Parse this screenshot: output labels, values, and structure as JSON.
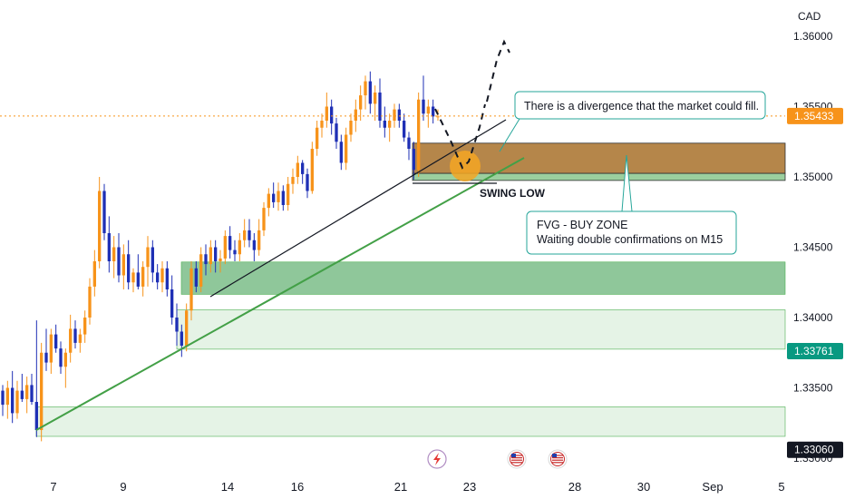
{
  "chart_data": {
    "type": "candlestick",
    "symbol_quote_currency": "CAD",
    "y_ticks": [
      "1.36000",
      "1.35500",
      "1.35000",
      "1.34500",
      "1.34000",
      "1.33500",
      "1.33000"
    ],
    "ylim": [
      1.32985,
      1.3615
    ],
    "x_ticks": [
      "7",
      "9",
      "14",
      "16",
      "21",
      "23",
      "28",
      "30",
      "Sep",
      "5"
    ],
    "price_tags": [
      {
        "label": "1.35433",
        "price": 1.35433,
        "bg": "#f7931a"
      },
      {
        "label": "1.33761",
        "price": 1.33761,
        "bg": "#089981"
      },
      {
        "label": "1.33060",
        "price": 1.3306,
        "bg": "#131722"
      }
    ],
    "current_price": 1.35433,
    "zones": [
      {
        "name": "fvg-buy-zone-upper",
        "from": 1.35025,
        "to": 1.3524,
        "color": "#b5864a"
      },
      {
        "name": "fvg-buy-zone-lower",
        "from": 1.34975,
        "to": 1.35025,
        "color": "#9bcf9e"
      },
      {
        "name": "demand-zone-1",
        "from": 1.34165,
        "to": 1.34395,
        "color": "#8fc79a"
      },
      {
        "name": "demand-zone-2",
        "from": 1.33775,
        "to": 1.34055,
        "color": "#e5f3e6"
      },
      {
        "name": "demand-zone-3",
        "from": 1.33155,
        "to": 1.33365,
        "color": "#e5f3e6"
      }
    ],
    "annotations": {
      "divergence_note": "There is a divergence that the market could fill.",
      "fvg_title": "FVG - BUY ZONE",
      "fvg_subtitle": "Waiting double confirmations on M15",
      "swing_low": "SWING LOW"
    },
    "candles": [
      [
        1.3348,
        1.3352,
        1.333,
        1.3338
      ],
      [
        1.3338,
        1.3355,
        1.3328,
        1.335
      ],
      [
        1.335,
        1.3362,
        1.3325,
        1.3332
      ],
      [
        1.3332,
        1.3355,
        1.3328,
        1.3348
      ],
      [
        1.3348,
        1.336,
        1.334,
        1.3342
      ],
      [
        1.3342,
        1.3358,
        1.3332,
        1.3352
      ],
      [
        1.3352,
        1.336,
        1.3338,
        1.334
      ],
      [
        1.334,
        1.3398,
        1.3315,
        1.332
      ],
      [
        1.332,
        1.3382,
        1.3312,
        1.3375
      ],
      [
        1.3375,
        1.3392,
        1.3362,
        1.3368
      ],
      [
        1.3368,
        1.3392,
        1.336,
        1.3388
      ],
      [
        1.3388,
        1.3395,
        1.3375,
        1.3378
      ],
      [
        1.3378,
        1.3383,
        1.336,
        1.3365
      ],
      [
        1.3365,
        1.3378,
        1.335,
        1.3375
      ],
      [
        1.3375,
        1.3402,
        1.3368,
        1.3392
      ],
      [
        1.3392,
        1.3398,
        1.3378,
        1.3382
      ],
      [
        1.3382,
        1.3392,
        1.3375,
        1.3388
      ],
      [
        1.3388,
        1.3405,
        1.3382,
        1.34
      ],
      [
        1.34,
        1.3428,
        1.3395,
        1.3422
      ],
      [
        1.3422,
        1.3448,
        1.3415,
        1.344
      ],
      [
        1.344,
        1.35,
        1.3435,
        1.349
      ],
      [
        1.349,
        1.3495,
        1.3455,
        1.346
      ],
      [
        1.346,
        1.3472,
        1.3432,
        1.344
      ],
      [
        1.344,
        1.3458,
        1.3428,
        1.345
      ],
      [
        1.345,
        1.346,
        1.3425,
        1.343
      ],
      [
        1.343,
        1.3452,
        1.342,
        1.3445
      ],
      [
        1.3445,
        1.3455,
        1.342,
        1.3425
      ],
      [
        1.3425,
        1.3435,
        1.3418,
        1.3432
      ],
      [
        1.3432,
        1.3445,
        1.342,
        1.3422
      ],
      [
        1.3422,
        1.344,
        1.3415,
        1.3436
      ],
      [
        1.3436,
        1.3458,
        1.3422,
        1.345
      ],
      [
        1.345,
        1.3455,
        1.3425,
        1.3432
      ],
      [
        1.3432,
        1.3438,
        1.342,
        1.3425
      ],
      [
        1.3425,
        1.344,
        1.3418,
        1.3435
      ],
      [
        1.3435,
        1.344,
        1.3415,
        1.342
      ],
      [
        1.342,
        1.343,
        1.3395,
        1.34
      ],
      [
        1.34,
        1.341,
        1.338,
        1.339
      ],
      [
        1.339,
        1.3395,
        1.3372,
        1.338
      ],
      [
        1.338,
        1.341,
        1.3376,
        1.3405
      ],
      [
        1.3405,
        1.344,
        1.3398,
        1.3435
      ],
      [
        1.3435,
        1.344,
        1.3418,
        1.3422
      ],
      [
        1.3422,
        1.345,
        1.3418,
        1.3445
      ],
      [
        1.3445,
        1.3452,
        1.343,
        1.3438
      ],
      [
        1.3438,
        1.3455,
        1.3432,
        1.345
      ],
      [
        1.345,
        1.3455,
        1.3432,
        1.344
      ],
      [
        1.344,
        1.3448,
        1.3432,
        1.3442
      ],
      [
        1.3442,
        1.3462,
        1.3438,
        1.3458
      ],
      [
        1.3458,
        1.3465,
        1.3442,
        1.3448
      ],
      [
        1.3448,
        1.3455,
        1.344,
        1.3445
      ],
      [
        1.3445,
        1.346,
        1.344,
        1.3455
      ],
      [
        1.3455,
        1.347,
        1.345,
        1.3462
      ],
      [
        1.3462,
        1.347,
        1.345,
        1.3455
      ],
      [
        1.3455,
        1.346,
        1.344,
        1.3448
      ],
      [
        1.3448,
        1.347,
        1.3444,
        1.3462
      ],
      [
        1.3462,
        1.3482,
        1.3458,
        1.3478
      ],
      [
        1.3478,
        1.3492,
        1.3472,
        1.3488
      ],
      [
        1.3488,
        1.3496,
        1.3478,
        1.3482
      ],
      [
        1.3482,
        1.3496,
        1.3476,
        1.349
      ],
      [
        1.349,
        1.3494,
        1.3476,
        1.348
      ],
      [
        1.348,
        1.35,
        1.3476,
        1.3495
      ],
      [
        1.3495,
        1.3506,
        1.3488,
        1.35
      ],
      [
        1.35,
        1.3515,
        1.3495,
        1.351
      ],
      [
        1.351,
        1.3512,
        1.3495,
        1.3502
      ],
      [
        1.3502,
        1.3506,
        1.3485,
        1.349
      ],
      [
        1.349,
        1.3525,
        1.3488,
        1.352
      ],
      [
        1.352,
        1.354,
        1.3515,
        1.3535
      ],
      [
        1.3535,
        1.3545,
        1.3528,
        1.354
      ],
      [
        1.354,
        1.356,
        1.3535,
        1.355
      ],
      [
        1.355,
        1.3555,
        1.353,
        1.3538
      ],
      [
        1.3538,
        1.3542,
        1.352,
        1.3525
      ],
      [
        1.3525,
        1.353,
        1.3505,
        1.351
      ],
      [
        1.351,
        1.3535,
        1.3505,
        1.353
      ],
      [
        1.353,
        1.3545,
        1.3525,
        1.354
      ],
      [
        1.354,
        1.3555,
        1.3532,
        1.3548
      ],
      [
        1.3548,
        1.3565,
        1.354,
        1.3558
      ],
      [
        1.3558,
        1.3572,
        1.3548,
        1.3568
      ],
      [
        1.3568,
        1.3575,
        1.3545,
        1.3552
      ],
      [
        1.3552,
        1.3565,
        1.354,
        1.356
      ],
      [
        1.356,
        1.357,
        1.3535,
        1.354
      ],
      [
        1.354,
        1.355,
        1.3528,
        1.3535
      ],
      [
        1.3535,
        1.3545,
        1.3525,
        1.354
      ],
      [
        1.354,
        1.3552,
        1.3535,
        1.3548
      ],
      [
        1.3548,
        1.3552,
        1.3535,
        1.354
      ],
      [
        1.354,
        1.3545,
        1.3525,
        1.3528
      ],
      [
        1.3528,
        1.3532,
        1.3512,
        1.352
      ],
      [
        1.352,
        1.3525,
        1.3498,
        1.3505
      ],
      [
        1.3505,
        1.356,
        1.35,
        1.3555
      ],
      [
        1.3555,
        1.3572,
        1.354,
        1.3545
      ],
      [
        1.3545,
        1.3555,
        1.3535,
        1.355
      ],
      [
        1.355,
        1.3555,
        1.3538,
        1.3543
      ],
      [
        1.3543,
        1.3548,
        1.354,
        1.3543
      ]
    ]
  }
}
